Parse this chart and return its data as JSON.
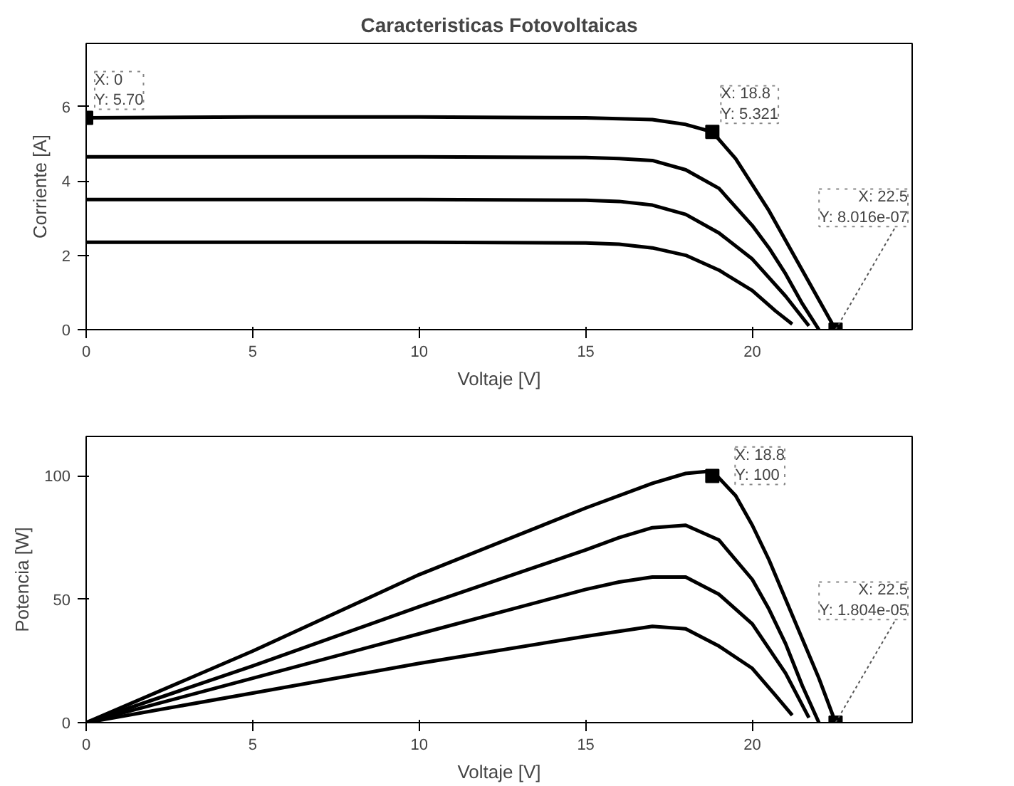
{
  "chart_data": [
    {
      "type": "line",
      "title": "Caracteristicas Fotovoltaicas",
      "xlabel": "Voltaje [V]",
      "ylabel": "Corriente [A]",
      "xlim": [
        0,
        24.8
      ],
      "ylim": [
        0,
        7.7
      ],
      "xticks": [
        0,
        5,
        10,
        15,
        20
      ],
      "yticks": [
        0,
        2,
        4,
        6
      ],
      "grid": false,
      "marker": "none",
      "line_style": "solid",
      "series": [
        {
          "color": "#000000",
          "x": [
            0,
            5,
            10,
            15,
            17,
            18,
            18.8,
            19.5,
            20,
            20.5,
            21,
            21.5,
            22,
            22.5
          ],
          "values": [
            5.7,
            5.72,
            5.72,
            5.7,
            5.65,
            5.52,
            5.32,
            4.6,
            3.9,
            3.2,
            2.4,
            1.6,
            0.8,
            0
          ]
        },
        {
          "color": "#000000",
          "x": [
            0,
            5,
            10,
            15,
            16,
            17,
            18,
            19,
            20,
            20.5,
            21,
            21.5,
            22
          ],
          "values": [
            4.65,
            4.65,
            4.65,
            4.63,
            4.6,
            4.55,
            4.3,
            3.8,
            2.8,
            2.2,
            1.5,
            0.7,
            0
          ]
        },
        {
          "color": "#000000",
          "x": [
            0,
            5,
            10,
            15,
            16,
            17,
            18,
            19,
            20,
            21,
            21.7
          ],
          "values": [
            3.5,
            3.5,
            3.5,
            3.48,
            3.45,
            3.35,
            3.1,
            2.6,
            1.9,
            0.9,
            0.1
          ]
        },
        {
          "color": "#000000",
          "x": [
            0,
            5,
            10,
            15,
            16,
            17,
            18,
            19,
            20,
            20.7,
            21.2
          ],
          "values": [
            2.35,
            2.35,
            2.35,
            2.33,
            2.3,
            2.2,
            2.0,
            1.6,
            1.05,
            0.5,
            0.15
          ]
        }
      ],
      "annotations": [
        {
          "text": "X: 0\nY: 5.70",
          "x": 0,
          "y": 5.7
        },
        {
          "text": "X: 18.8\nY: 5.321",
          "x": 18.8,
          "y": 5.321
        },
        {
          "text": "X: 22.5\nY: 8.016e-07",
          "x": 22.5,
          "y": 8.016e-07
        }
      ]
    },
    {
      "type": "line",
      "xlabel": "Voltaje [V]",
      "ylabel": "Potencia [W]",
      "xlim": [
        0,
        24.8
      ],
      "ylim": [
        0,
        116
      ],
      "xticks": [
        0,
        5,
        10,
        15,
        20
      ],
      "yticks": [
        0,
        50,
        100
      ],
      "grid": false,
      "marker": "none",
      "line_style": "solid",
      "series": [
        {
          "color": "#000000",
          "x": [
            0,
            5,
            10,
            15,
            17,
            18,
            18.8,
            19.5,
            20,
            20.5,
            21,
            21.5,
            22,
            22.5
          ],
          "values": [
            0,
            29,
            60,
            87,
            97,
            101,
            102,
            92,
            80,
            66,
            50,
            34,
            18,
            0
          ]
        },
        {
          "color": "#000000",
          "x": [
            0,
            5,
            10,
            15,
            16,
            17,
            18,
            19,
            20,
            20.5,
            21,
            21.5,
            22
          ],
          "values": [
            0,
            23,
            47,
            70,
            75,
            79,
            80,
            74,
            58,
            46,
            32,
            15,
            0
          ]
        },
        {
          "color": "#000000",
          "x": [
            0,
            5,
            10,
            15,
            16,
            17,
            18,
            19,
            20,
            21,
            21.7
          ],
          "values": [
            0,
            18,
            36,
            54,
            57,
            59,
            59,
            52,
            40,
            20,
            2
          ]
        },
        {
          "color": "#000000",
          "x": [
            0,
            5,
            10,
            15,
            16,
            17,
            18,
            19,
            20,
            20.7,
            21.2
          ],
          "values": [
            0,
            12,
            24,
            35,
            37,
            39,
            38,
            31,
            22,
            11,
            3
          ]
        }
      ],
      "annotations": [
        {
          "text": "X: 18.8\nY: 100",
          "x": 18.8,
          "y": 100
        },
        {
          "text": "X: 22.5\nY: 1.804e-05",
          "x": 22.5,
          "y": 1.804e-05
        }
      ]
    }
  ]
}
